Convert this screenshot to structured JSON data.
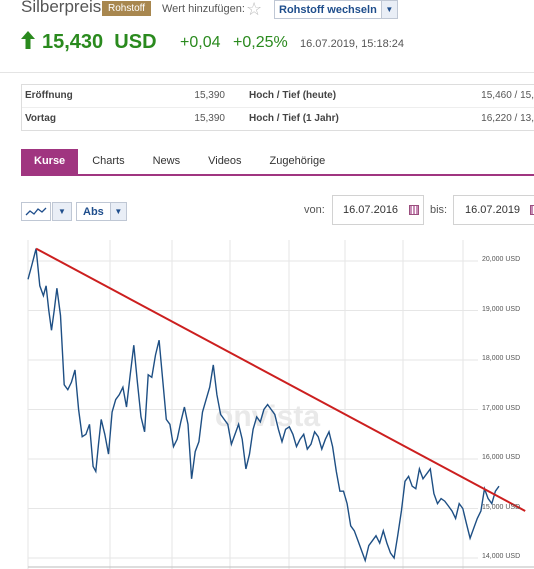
{
  "header": {
    "title": "Silberpreis",
    "tag": "Rohstoff",
    "add_label": "Wert hinzufügen:",
    "switch_label": "Rohstoff wechseln"
  },
  "price": {
    "value": "15,430",
    "currency": "USD",
    "change": "+0,04",
    "change_pct": "+0,25%",
    "timestamp": "16.07.2019, 15:18:24",
    "direction_color": "#2a8a1e"
  },
  "stats": {
    "rows": [
      {
        "label": "Eröffnung",
        "value": "15,390",
        "label2": "Hoch / Tief (heute)",
        "value2": "15,460 / 15,"
      },
      {
        "label": "Vortag",
        "value": "15,390",
        "label2": "Hoch / Tief (1 Jahr)",
        "value2": "16,220 / 13,"
      }
    ]
  },
  "tabs": [
    "Kurse",
    "Charts",
    "News",
    "Videos",
    "Zugehörige"
  ],
  "controls": {
    "chart_type_icon": "line-chart-icon",
    "scale": "Abs",
    "from_label": "von:",
    "from_date": "16.07.2016",
    "to_label": "bis:",
    "to_date": "16.07.2019"
  },
  "chart": {
    "watermark": "onvista",
    "y_labels": [
      "20,000 USD",
      "19,000 USD",
      "18,000 USD",
      "17,000 USD",
      "16,000 USD",
      "15,000 USD",
      "14,000 USD"
    ],
    "line_color": "#1e4f84",
    "trend_color": "#cc1f1f"
  },
  "chart_data": {
    "type": "line",
    "xlim": [
      "16.07.2016",
      "16.07.2019"
    ],
    "ylim": [
      13900,
      20200
    ],
    "series": [
      {
        "values": [
          [
            0.0,
            19630
          ],
          [
            0.008,
            19900
          ],
          [
            0.018,
            20250
          ],
          [
            0.026,
            19500
          ],
          [
            0.034,
            19300
          ],
          [
            0.04,
            19500
          ],
          [
            0.046,
            19000
          ],
          [
            0.052,
            18600
          ],
          [
            0.058,
            19000
          ],
          [
            0.064,
            19450
          ],
          [
            0.072,
            18900
          ],
          [
            0.08,
            17500
          ],
          [
            0.088,
            17400
          ],
          [
            0.096,
            17550
          ],
          [
            0.104,
            17800
          ],
          [
            0.112,
            17000
          ],
          [
            0.12,
            16450
          ],
          [
            0.128,
            16500
          ],
          [
            0.136,
            16700
          ],
          [
            0.144,
            15850
          ],
          [
            0.15,
            15750
          ],
          [
            0.156,
            16300
          ],
          [
            0.162,
            16800
          ],
          [
            0.17,
            16500
          ],
          [
            0.178,
            16100
          ],
          [
            0.186,
            16950
          ],
          [
            0.194,
            17200
          ],
          [
            0.202,
            17300
          ],
          [
            0.21,
            17450
          ],
          [
            0.218,
            17050
          ],
          [
            0.226,
            17700
          ],
          [
            0.234,
            18300
          ],
          [
            0.242,
            17550
          ],
          [
            0.25,
            16850
          ],
          [
            0.258,
            16550
          ],
          [
            0.266,
            17700
          ],
          [
            0.274,
            17650
          ],
          [
            0.282,
            18100
          ],
          [
            0.29,
            18400
          ],
          [
            0.298,
            17600
          ],
          [
            0.306,
            16800
          ],
          [
            0.314,
            16700
          ],
          [
            0.322,
            16250
          ],
          [
            0.33,
            16400
          ],
          [
            0.338,
            16750
          ],
          [
            0.346,
            17050
          ],
          [
            0.354,
            16700
          ],
          [
            0.362,
            15600
          ],
          [
            0.37,
            16150
          ],
          [
            0.378,
            16350
          ],
          [
            0.386,
            16950
          ],
          [
            0.394,
            17200
          ],
          [
            0.402,
            17450
          ],
          [
            0.41,
            17900
          ],
          [
            0.418,
            17300
          ],
          [
            0.426,
            16900
          ],
          [
            0.434,
            16800
          ],
          [
            0.442,
            16700
          ],
          [
            0.45,
            16300
          ],
          [
            0.458,
            16500
          ],
          [
            0.466,
            16700
          ],
          [
            0.474,
            16400
          ],
          [
            0.482,
            15800
          ],
          [
            0.49,
            16100
          ],
          [
            0.498,
            16600
          ],
          [
            0.506,
            16850
          ],
          [
            0.514,
            16750
          ],
          [
            0.522,
            17000
          ],
          [
            0.53,
            17100
          ],
          [
            0.538,
            17000
          ],
          [
            0.546,
            16900
          ],
          [
            0.554,
            16600
          ],
          [
            0.562,
            16350
          ],
          [
            0.57,
            16600
          ],
          [
            0.578,
            16650
          ],
          [
            0.586,
            16500
          ],
          [
            0.594,
            16250
          ],
          [
            0.602,
            16400
          ],
          [
            0.61,
            16500
          ],
          [
            0.618,
            16200
          ],
          [
            0.626,
            16300
          ],
          [
            0.634,
            16550
          ],
          [
            0.642,
            16450
          ],
          [
            0.65,
            16200
          ],
          [
            0.658,
            16400
          ],
          [
            0.666,
            16550
          ],
          [
            0.674,
            16250
          ],
          [
            0.682,
            15750
          ],
          [
            0.69,
            15350
          ],
          [
            0.698,
            15350
          ],
          [
            0.706,
            15100
          ],
          [
            0.714,
            14650
          ],
          [
            0.722,
            14550
          ],
          [
            0.73,
            14350
          ],
          [
            0.738,
            14150
          ],
          [
            0.746,
            13950
          ],
          [
            0.754,
            14250
          ],
          [
            0.762,
            14350
          ],
          [
            0.77,
            14450
          ],
          [
            0.778,
            14300
          ],
          [
            0.786,
            14550
          ],
          [
            0.794,
            14300
          ],
          [
            0.802,
            14100
          ],
          [
            0.81,
            14000
          ],
          [
            0.818,
            14450
          ],
          [
            0.826,
            14950
          ],
          [
            0.834,
            15550
          ],
          [
            0.842,
            15650
          ],
          [
            0.85,
            15450
          ],
          [
            0.858,
            15400
          ],
          [
            0.866,
            15800
          ],
          [
            0.874,
            15600
          ],
          [
            0.882,
            15700
          ],
          [
            0.89,
            15800
          ],
          [
            0.898,
            15300
          ],
          [
            0.906,
            15100
          ],
          [
            0.914,
            15200
          ],
          [
            0.922,
            15150
          ],
          [
            0.93,
            15050
          ],
          [
            0.938,
            14950
          ],
          [
            0.946,
            14800
          ],
          [
            0.954,
            15100
          ],
          [
            0.962,
            15000
          ],
          [
            0.97,
            14700
          ],
          [
            0.978,
            14400
          ],
          [
            0.986,
            14600
          ],
          [
            0.994,
            14800
          ],
          [
            1.002,
            14950
          ],
          [
            1.01,
            15400
          ],
          [
            1.018,
            15200
          ],
          [
            1.026,
            15100
          ],
          [
            1.034,
            15350
          ],
          [
            1.042,
            15450
          ]
        ]
      }
    ],
    "trendline": [
      [
        0.018,
        20250
      ],
      [
        1.1,
        14950
      ]
    ],
    "grid": true
  }
}
